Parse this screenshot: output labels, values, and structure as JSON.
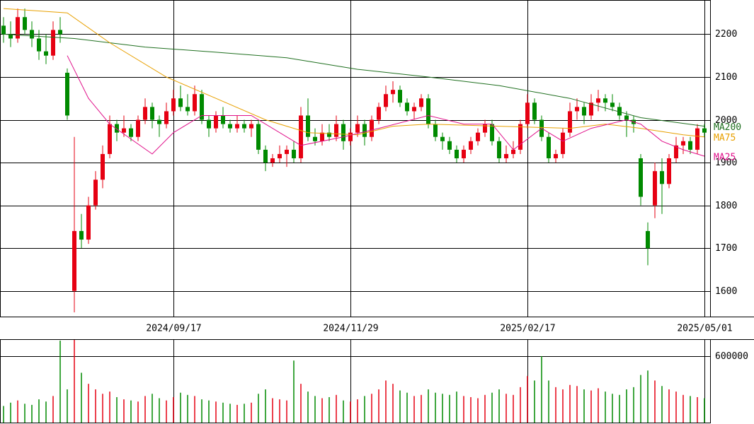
{
  "chart_data": [
    {
      "type": "candlestick",
      "xlim": [
        -0.5,
        99.8
      ],
      "ylim": [
        1540,
        2280
      ],
      "yticks": [
        1600,
        1700,
        1800,
        1900,
        2000,
        2100,
        2200
      ],
      "xticks": [
        {
          "value": 24,
          "label": "2024/09/17"
        },
        {
          "value": 49,
          "label": "2024/11/29"
        },
        {
          "value": 74,
          "label": "2025/02/17"
        },
        {
          "value": 99,
          "label": "2025/05/01"
        }
      ],
      "grid": true,
      "up_color": "#e60012",
      "down_color": "#008a00",
      "ohlc": [
        [
          2220,
          2240,
          2180,
          2200
        ],
        [
          2200,
          2230,
          2170,
          2190
        ],
        [
          2190,
          2260,
          2180,
          2240
        ],
        [
          2240,
          2260,
          2200,
          2210
        ],
        [
          2210,
          2230,
          2170,
          2190
        ],
        [
          2190,
          2210,
          2140,
          2160
        ],
        [
          2160,
          2200,
          2130,
          2150
        ],
        [
          2150,
          2230,
          2140,
          2210
        ],
        [
          2210,
          2240,
          2180,
          2200
        ],
        [
          2110,
          2120,
          2000,
          2010
        ],
        [
          1600,
          1960,
          1550,
          1740
        ],
        [
          1740,
          1780,
          1700,
          1720
        ],
        [
          1720,
          1820,
          1710,
          1800
        ],
        [
          1800,
          1880,
          1790,
          1860
        ],
        [
          1860,
          1940,
          1840,
          1920
        ],
        [
          1920,
          2010,
          1910,
          1990
        ],
        [
          1990,
          2000,
          1950,
          1970
        ],
        [
          1970,
          2010,
          1960,
          1980
        ],
        [
          1980,
          1990,
          1950,
          1960
        ],
        [
          1960,
          2010,
          1950,
          2000
        ],
        [
          2000,
          2050,
          1990,
          2030
        ],
        [
          2030,
          2040,
          1980,
          2000
        ],
        [
          2000,
          2010,
          1960,
          1990
        ],
        [
          1990,
          2040,
          1980,
          2020
        ],
        [
          2020,
          2070,
          2010,
          2050
        ],
        [
          2050,
          2080,
          2020,
          2030
        ],
        [
          2030,
          2060,
          2010,
          2020
        ],
        [
          2020,
          2080,
          2010,
          2060
        ],
        [
          2060,
          2070,
          1990,
          2000
        ],
        [
          2000,
          2010,
          1960,
          1980
        ],
        [
          1980,
          2020,
          1970,
          2010
        ],
        [
          2010,
          2030,
          1980,
          1990
        ],
        [
          1990,
          2000,
          1970,
          1980
        ],
        [
          1980,
          2010,
          1970,
          1990
        ],
        [
          1990,
          2000,
          1970,
          1980
        ],
        [
          1980,
          2000,
          1960,
          1990
        ],
        [
          1990,
          2000,
          1920,
          1930
        ],
        [
          1930,
          1940,
          1880,
          1900
        ],
        [
          1900,
          1920,
          1890,
          1910
        ],
        [
          1910,
          1940,
          1900,
          1920
        ],
        [
          1920,
          1940,
          1890,
          1930
        ],
        [
          1930,
          1950,
          1900,
          1910
        ],
        [
          1910,
          2030,
          1900,
          2010
        ],
        [
          2010,
          2050,
          1950,
          1960
        ],
        [
          1960,
          1980,
          1940,
          1950
        ],
        [
          1950,
          1990,
          1940,
          1970
        ],
        [
          1970,
          1990,
          1950,
          1960
        ],
        [
          1960,
          2010,
          1950,
          1990
        ],
        [
          1990,
          2000,
          1930,
          1950
        ],
        [
          1950,
          1980,
          1940,
          1970
        ],
        [
          1970,
          2010,
          1960,
          1990
        ],
        [
          1990,
          2000,
          1940,
          1960
        ],
        [
          1960,
          2010,
          1950,
          2000
        ],
        [
          2000,
          2040,
          1990,
          2030
        ],
        [
          2030,
          2080,
          2020,
          2060
        ],
        [
          2060,
          2090,
          2040,
          2070
        ],
        [
          2070,
          2080,
          2030,
          2040
        ],
        [
          2040,
          2050,
          2010,
          2020
        ],
        [
          2020,
          2040,
          2000,
          2030
        ],
        [
          2030,
          2060,
          2020,
          2050
        ],
        [
          2050,
          2060,
          1980,
          1990
        ],
        [
          1990,
          2000,
          1950,
          1960
        ],
        [
          1960,
          1970,
          1930,
          1950
        ],
        [
          1950,
          1960,
          1920,
          1930
        ],
        [
          1930,
          1940,
          1900,
          1910
        ],
        [
          1910,
          1940,
          1900,
          1930
        ],
        [
          1930,
          1960,
          1920,
          1950
        ],
        [
          1950,
          1980,
          1940,
          1970
        ],
        [
          1970,
          2000,
          1960,
          1990
        ],
        [
          1990,
          2000,
          1940,
          1950
        ],
        [
          1950,
          1960,
          1900,
          1910
        ],
        [
          1910,
          1940,
          1900,
          1920
        ],
        [
          1920,
          1950,
          1910,
          1930
        ],
        [
          1930,
          2000,
          1920,
          1990
        ],
        [
          1990,
          2060,
          1980,
          2040
        ],
        [
          2040,
          2050,
          1990,
          2000
        ],
        [
          2000,
          2010,
          1950,
          1960
        ],
        [
          1960,
          1970,
          1900,
          1910
        ],
        [
          1910,
          1930,
          1900,
          1920
        ],
        [
          1920,
          1980,
          1910,
          1970
        ],
        [
          1970,
          2040,
          1960,
          2020
        ],
        [
          2020,
          2050,
          2000,
          2030
        ],
        [
          2030,
          2040,
          1990,
          2010
        ],
        [
          2010,
          2060,
          2000,
          2040
        ],
        [
          2040,
          2070,
          2020,
          2050
        ],
        [
          2050,
          2060,
          2020,
          2040
        ],
        [
          2040,
          2060,
          2020,
          2030
        ],
        [
          2030,
          2040,
          2000,
          2010
        ],
        [
          2010,
          2020,
          1960,
          2000
        ],
        [
          2000,
          2010,
          1970,
          1990
        ],
        [
          1910,
          1920,
          1800,
          1820
        ],
        [
          1740,
          1760,
          1660,
          1700
        ],
        [
          1800,
          1900,
          1770,
          1880
        ],
        [
          1880,
          1910,
          1780,
          1850
        ],
        [
          1850,
          1920,
          1840,
          1910
        ],
        [
          1910,
          1960,
          1900,
          1940
        ],
        [
          1940,
          1960,
          1920,
          1950
        ],
        [
          1950,
          1960,
          1920,
          1930
        ],
        [
          1930,
          1990,
          1920,
          1980
        ],
        [
          1980,
          1990,
          1960,
          1970
        ]
      ],
      "series": [
        {
          "name": "MA200",
          "color": "#1f6f1f",
          "x": [
            0,
            10,
            20,
            30,
            40,
            50,
            60,
            70,
            80,
            90,
            99
          ],
          "values": [
            2200,
            2190,
            2170,
            2158,
            2145,
            2118,
            2100,
            2080,
            2050,
            2005,
            1985
          ]
        },
        {
          "name": "MA75",
          "color": "#e8a000",
          "x": [
            0,
            9,
            15,
            23,
            30,
            37,
            43,
            50,
            55,
            60,
            70,
            80,
            85,
            90,
            96,
            99
          ],
          "values": [
            2260,
            2250,
            2180,
            2100,
            2050,
            2000,
            1970,
            1965,
            1985,
            1990,
            1985,
            1980,
            1990,
            1980,
            1965,
            1960
          ]
        },
        {
          "name": "MA25",
          "color": "#e0108a",
          "x": [
            9,
            12,
            15,
            21,
            24,
            28,
            35,
            37,
            42,
            48,
            53,
            60,
            65,
            69,
            72,
            76,
            79,
            83,
            88,
            90,
            93,
            96,
            99
          ],
          "values": [
            2150,
            2050,
            1990,
            1920,
            1970,
            2010,
            2010,
            1990,
            1940,
            1960,
            1980,
            2010,
            1990,
            1990,
            1930,
            1980,
            1950,
            1980,
            2000,
            1990,
            1950,
            1930,
            1915
          ]
        }
      ]
    },
    {
      "type": "bar",
      "ylim": [
        0,
        753000
      ],
      "yticks": [
        600000
      ],
      "values": [
        150000,
        180000,
        200000,
        170000,
        160000,
        210000,
        190000,
        240000,
        740000,
        300000,
        750000,
        450000,
        350000,
        300000,
        260000,
        280000,
        230000,
        210000,
        200000,
        190000,
        240000,
        260000,
        220000,
        200000,
        230000,
        270000,
        250000,
        240000,
        210000,
        200000,
        190000,
        180000,
        170000,
        160000,
        170000,
        180000,
        260000,
        300000,
        220000,
        210000,
        200000,
        560000,
        350000,
        280000,
        240000,
        220000,
        230000,
        250000,
        200000,
        190000,
        210000,
        240000,
        260000,
        300000,
        380000,
        350000,
        290000,
        270000,
        240000,
        250000,
        300000,
        270000,
        260000,
        250000,
        280000,
        240000,
        230000,
        220000,
        250000,
        270000,
        300000,
        260000,
        250000,
        320000,
        420000,
        380000,
        600000,
        380000,
        320000,
        300000,
        340000,
        330000,
        300000,
        290000,
        310000,
        280000,
        260000,
        250000,
        300000,
        320000,
        430000,
        470000,
        380000,
        330000,
        300000,
        280000,
        250000,
        240000,
        230000,
        220000
      ]
    }
  ]
}
